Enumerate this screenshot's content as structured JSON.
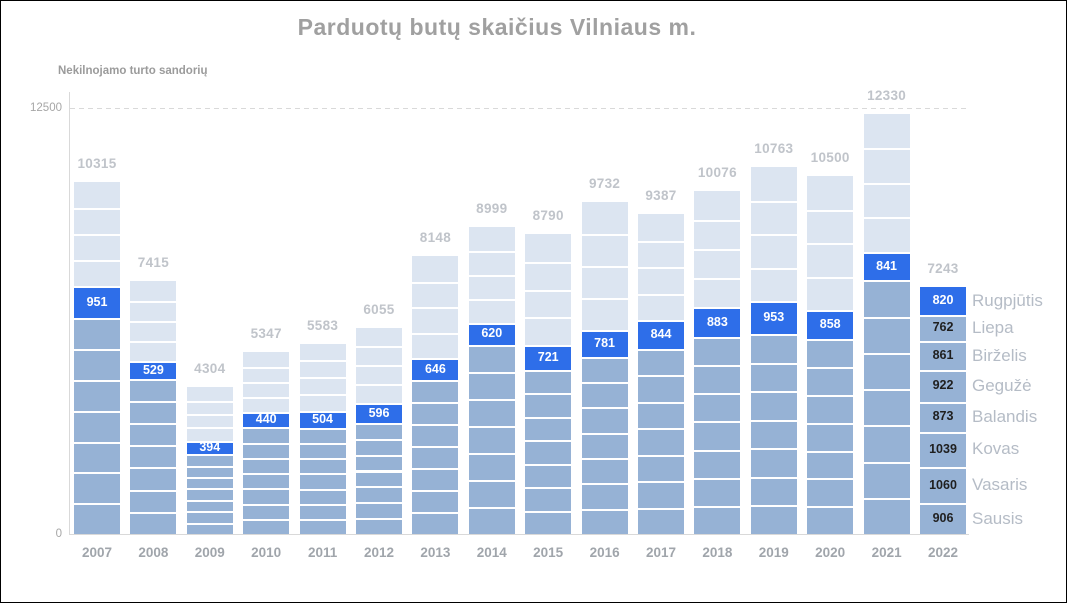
{
  "chart_data": {
    "type": "bar",
    "stacked": true,
    "title": "Parduotų butų skaičius Vilniaus m.",
    "axis_title": "Nekilnojamo turto sandorių",
    "ylim": [
      0,
      12500
    ],
    "y_ticks": [
      {
        "value": 0,
        "label": "0"
      },
      {
        "value": 12500,
        "label": "12500"
      }
    ],
    "gridline_value": 12500,
    "legend_position": "right-of-last-bar",
    "categories": [
      "2007",
      "2008",
      "2009",
      "2010",
      "2011",
      "2012",
      "2013",
      "2014",
      "2015",
      "2016",
      "2017",
      "2018",
      "2019",
      "2020",
      "2021",
      "2022"
    ],
    "totals": [
      10315,
      7415,
      4304,
      5347,
      5583,
      6055,
      8148,
      8999,
      8790,
      9732,
      9387,
      10076,
      10763,
      10500,
      12330,
      7243
    ],
    "highlight_series": {
      "name": "Rugpjūtis",
      "values": [
        951,
        529,
        394,
        440,
        504,
        596,
        646,
        620,
        721,
        781,
        844,
        883,
        953,
        858,
        841,
        820
      ]
    },
    "below_highlight_sum_estimated": [
      6330,
      4560,
      2340,
      3130,
      3110,
      3260,
      4520,
      5560,
      4820,
      5200,
      5430,
      5780,
      5870,
      5710,
      7440
    ],
    "months_below_highlight": 7,
    "months_above_highlight": 4,
    "final_year_breakdown": {
      "year": "2022",
      "months": [
        {
          "label": "Sausis",
          "value": 906
        },
        {
          "label": "Vasaris",
          "value": 1060
        },
        {
          "label": "Kovas",
          "value": 1039
        },
        {
          "label": "Balandis",
          "value": 873
        },
        {
          "label": "Gegužė",
          "value": 922
        },
        {
          "label": "Birželis",
          "value": 861
        },
        {
          "label": "Liepa",
          "value": 762
        },
        {
          "label": "Rugpjūtis",
          "value": 820,
          "highlight": true
        }
      ]
    },
    "colors": {
      "highlight": "#2e6ee9",
      "lower_segments": "#96b2d5",
      "upper_segments": "#dce5f1",
      "separator": "#ffffff",
      "title_text": "#a0a0a0",
      "total_label_text": "#c0c4ca",
      "year_label_text": "#a0a5ab",
      "month_label_text": "#b5bcc6",
      "axis_line": "#d9d9d9",
      "value_on_highlight": "#ffffff",
      "value_on_segment": "#1f1f1f"
    }
  }
}
